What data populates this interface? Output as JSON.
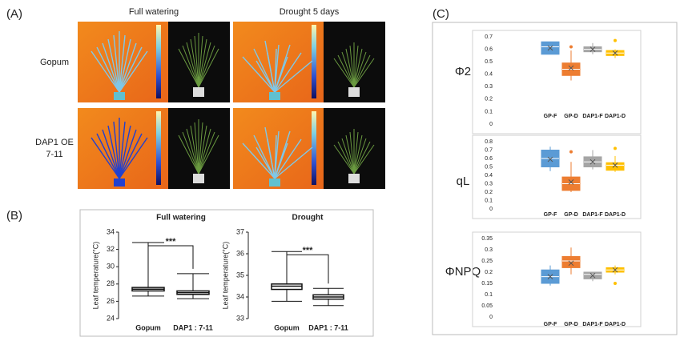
{
  "panels": {
    "a_label": "(A)",
    "b_label": "(B)",
    "c_label": "(C)",
    "col_titles": [
      "Full watering",
      "Drought 5 days"
    ],
    "row_titles": [
      "Gopum",
      [
        "DAP1 OE",
        "7-11"
      ]
    ]
  },
  "chart_data": [
    {
      "type": "box",
      "title": "Full watering",
      "y_label": "Leaf temperature(°C)",
      "annotation": "***",
      "categories": [
        "Gopum",
        "DAP1 : 7-11"
      ],
      "colors": [
        "#ffffff",
        "#ffffff"
      ],
      "ylim": [
        24,
        34
      ],
      "yticks": [
        24,
        26,
        28,
        30,
        32,
        34
      ],
      "boxes": [
        {
          "min": 26.6,
          "q1": 27.2,
          "median": 27.4,
          "q3": 27.6,
          "max": 32.8
        },
        {
          "min": 26.3,
          "q1": 26.8,
          "median": 27.0,
          "q3": 27.2,
          "max": 29.2
        }
      ]
    },
    {
      "type": "box",
      "title": "Drought",
      "y_label": "Leaf temperature(°C)",
      "annotation": "***",
      "categories": [
        "Gopum",
        "DAP1 : 7-11"
      ],
      "colors": [
        "#ffffff",
        "#ffffff"
      ],
      "ylim": [
        33,
        37
      ],
      "yticks": [
        33,
        34,
        35,
        36,
        37
      ],
      "boxes": [
        {
          "min": 33.8,
          "q1": 34.35,
          "median": 34.5,
          "q3": 34.6,
          "max": 36.1
        },
        {
          "min": 33.6,
          "q1": 33.9,
          "median": 34.0,
          "q3": 34.1,
          "max": 34.4
        }
      ]
    },
    {
      "type": "box",
      "title": "Φ2",
      "categories": [
        "GP-F",
        "GP-D",
        "DAP1-F",
        "DAP1-D"
      ],
      "colors": [
        "#5b9bd5",
        "#ed7d31",
        "#a5a5a5",
        "#ffc000"
      ],
      "ylim": [
        0,
        0.7
      ],
      "yticks": [
        0,
        0.1,
        0.2,
        0.3,
        0.4,
        0.5,
        0.6,
        0.7
      ],
      "boxes": [
        {
          "min": 0.56,
          "q1": 0.56,
          "median": 0.62,
          "q3": 0.66,
          "max": 0.66,
          "mean": 0.61
        },
        {
          "min": 0.35,
          "q1": 0.39,
          "median": 0.44,
          "q3": 0.49,
          "max": 0.59,
          "mean": 0.45,
          "outliers": [
            0.62
          ]
        },
        {
          "min": 0.56,
          "q1": 0.58,
          "median": 0.6,
          "q3": 0.62,
          "max": 0.65,
          "mean": 0.6
        },
        {
          "min": 0.53,
          "q1": 0.55,
          "median": 0.57,
          "q3": 0.59,
          "max": 0.6,
          "mean": 0.57,
          "outliers": [
            0.67
          ]
        }
      ]
    },
    {
      "type": "box",
      "title": "qL",
      "categories": [
        "GP-F",
        "GP-D",
        "DAP1-F",
        "DAP1-D"
      ],
      "colors": [
        "#5b9bd5",
        "#ed7d31",
        "#a5a5a5",
        "#ffc000"
      ],
      "ylim": [
        0,
        0.8
      ],
      "yticks": [
        0,
        0.1,
        0.2,
        0.3,
        0.4,
        0.5,
        0.6,
        0.7,
        0.8
      ],
      "boxes": [
        {
          "min": 0.45,
          "q1": 0.5,
          "median": 0.6,
          "q3": 0.7,
          "max": 0.74,
          "mean": 0.59
        },
        {
          "min": 0.2,
          "q1": 0.22,
          "median": 0.3,
          "q3": 0.38,
          "max": 0.56,
          "mean": 0.32,
          "outliers": [
            0.68
          ]
        },
        {
          "min": 0.47,
          "q1": 0.5,
          "median": 0.56,
          "q3": 0.62,
          "max": 0.7,
          "mean": 0.56
        },
        {
          "min": 0.44,
          "q1": 0.46,
          "median": 0.52,
          "q3": 0.55,
          "max": 0.63,
          "mean": 0.52,
          "outliers": [
            0.72
          ]
        }
      ]
    },
    {
      "type": "box",
      "title": "ΦNPQ",
      "categories": [
        "GP-F",
        "GP-D",
        "DAP1-F",
        "DAP1-D"
      ],
      "colors": [
        "#5b9bd5",
        "#ed7d31",
        "#a5a5a5",
        "#ffc000"
      ],
      "ylim": [
        0,
        0.35
      ],
      "yticks": [
        0,
        0.05,
        0.1,
        0.15,
        0.2,
        0.25,
        0.3,
        0.35
      ],
      "boxes": [
        {
          "min": 0.14,
          "q1": 0.15,
          "median": 0.18,
          "q3": 0.21,
          "max": 0.23,
          "mean": 0.18
        },
        {
          "min": 0.19,
          "q1": 0.22,
          "median": 0.25,
          "q3": 0.27,
          "max": 0.31,
          "mean": 0.24
        },
        {
          "min": 0.16,
          "q1": 0.17,
          "median": 0.19,
          "q3": 0.2,
          "max": 0.2,
          "mean": 0.185
        },
        {
          "min": 0.19,
          "q1": 0.2,
          "median": 0.21,
          "q3": 0.22,
          "max": 0.23,
          "mean": 0.21,
          "outliers": [
            0.15
          ]
        }
      ]
    }
  ]
}
